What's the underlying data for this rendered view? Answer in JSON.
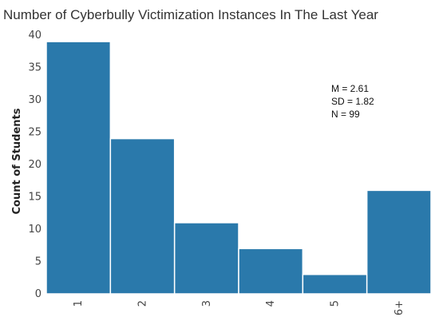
{
  "chart_data": {
    "type": "bar",
    "title": "Number of Cyberbully Victimization Instances In The Last Year",
    "xlabel": "",
    "ylabel": "Count of Students",
    "categories": [
      "1",
      "2",
      "3",
      "4",
      "5",
      "6+"
    ],
    "values": [
      39,
      24,
      11,
      7,
      3,
      16
    ],
    "ylim": [
      0,
      40
    ],
    "yticks": [
      0,
      5,
      10,
      15,
      20,
      25,
      30,
      35,
      40
    ],
    "grid": false,
    "legend": "none",
    "bar_color": "#2a79ab",
    "annotations": [
      "M = 2.61",
      "SD = 1.82",
      "N = 99"
    ]
  }
}
